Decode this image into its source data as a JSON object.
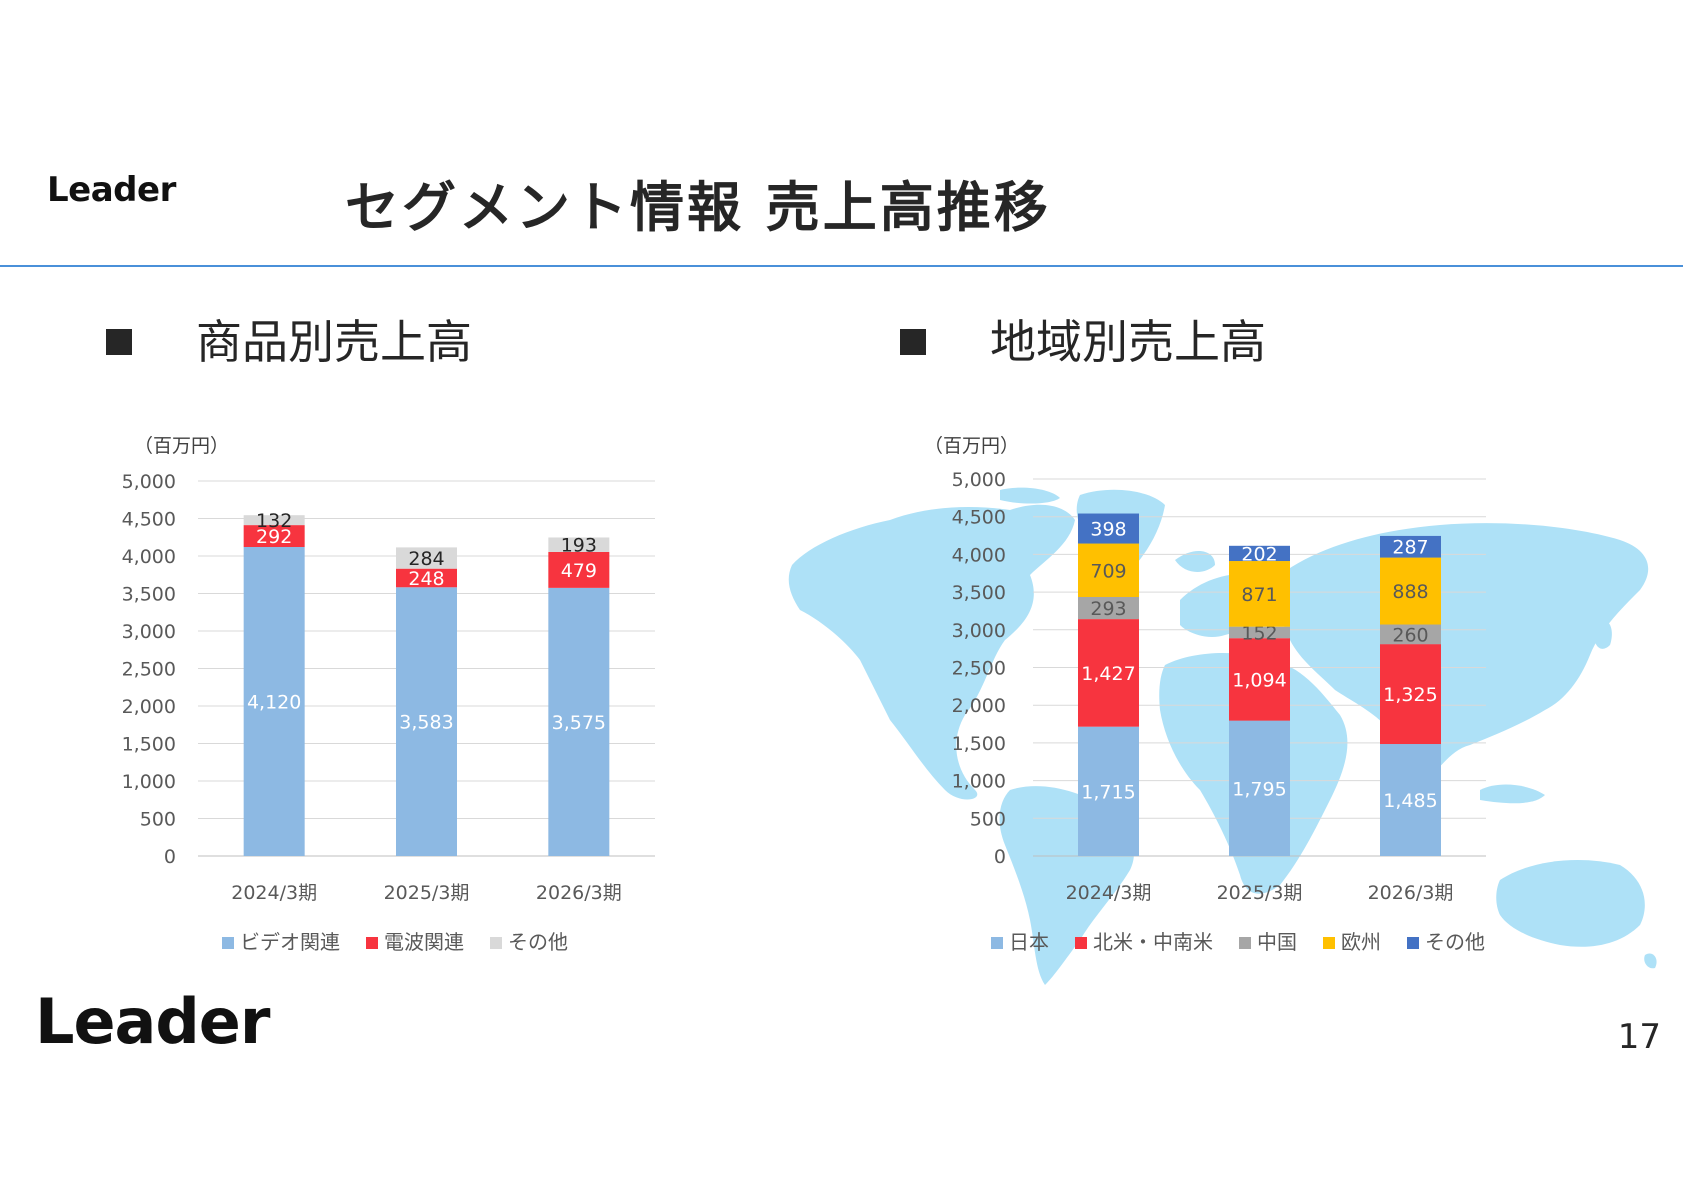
{
  "header": {
    "logo_text": "Leader",
    "title": "セグメント情報 売上高推移"
  },
  "sections": {
    "left_heading": "商品別売上高",
    "right_heading": "地域別売上高"
  },
  "footer": {
    "logo_text": "Leader",
    "page_number": "17"
  },
  "chart_data": [
    {
      "type": "bar",
      "stacked": true,
      "title": "",
      "unit_label": "（百万円）",
      "categories": [
        "2024/3期",
        "2025/3期",
        "2026/3期"
      ],
      "ylim": [
        0,
        5000
      ],
      "yticks": [
        "0",
        "500",
        "1,000",
        "1,500",
        "2,000",
        "2,500",
        "3,000",
        "3,500",
        "4,000",
        "4,500",
        "5,000"
      ],
      "grid": true,
      "legend_position": "bottom",
      "series": [
        {
          "name": "ビデオ関連",
          "color": "#8db9e3",
          "values": [
            4120,
            3583,
            3575
          ],
          "labels": [
            "4,120",
            "3,583",
            "3,575"
          ],
          "label_color": "#ffffff"
        },
        {
          "name": "電波関連",
          "color": "#f7343f",
          "values": [
            292,
            248,
            479
          ],
          "labels": [
            "292",
            "248",
            "479"
          ],
          "label_color": "#ffffff"
        },
        {
          "name": "その他",
          "color": "#d9d9d9",
          "values": [
            132,
            284,
            193
          ],
          "labels": [
            "132",
            "284",
            "193"
          ],
          "label_color": "#262626"
        }
      ]
    },
    {
      "type": "bar",
      "stacked": true,
      "title": "",
      "unit_label": "（百万円）",
      "categories": [
        "2024/3期",
        "2025/3期",
        "2026/3期"
      ],
      "ylim": [
        0,
        5000
      ],
      "yticks": [
        "0",
        "500",
        "1,000",
        "1,500",
        "2,000",
        "2,500",
        "3,000",
        "3,500",
        "4,000",
        "4,500",
        "5,000"
      ],
      "grid": true,
      "legend_position": "bottom",
      "background": "world-map",
      "series": [
        {
          "name": "日本",
          "color": "#8db9e3",
          "values": [
            1715,
            1795,
            1485
          ],
          "labels": [
            "1,715",
            "1,795",
            "1,485"
          ],
          "label_color": "#ffffff"
        },
        {
          "name": "北米・中南米",
          "color": "#f7343f",
          "values": [
            1427,
            1094,
            1325
          ],
          "labels": [
            "1,427",
            "1,094",
            "1,325"
          ],
          "label_color": "#ffffff"
        },
        {
          "name": "中国",
          "color": "#a6a6a6",
          "values": [
            293,
            152,
            260
          ],
          "labels": [
            "293",
            "152",
            "260"
          ],
          "label_color": "#595959"
        },
        {
          "name": "欧州",
          "color": "#ffc000",
          "values": [
            709,
            871,
            888
          ],
          "labels": [
            "709",
            "871",
            "888"
          ],
          "label_color": "#595959"
        },
        {
          "name": "その他",
          "color": "#4472c4",
          "values": [
            398,
            202,
            287
          ],
          "labels": [
            "398",
            "202",
            "287"
          ],
          "label_color": "#ffffff"
        }
      ]
    }
  ]
}
